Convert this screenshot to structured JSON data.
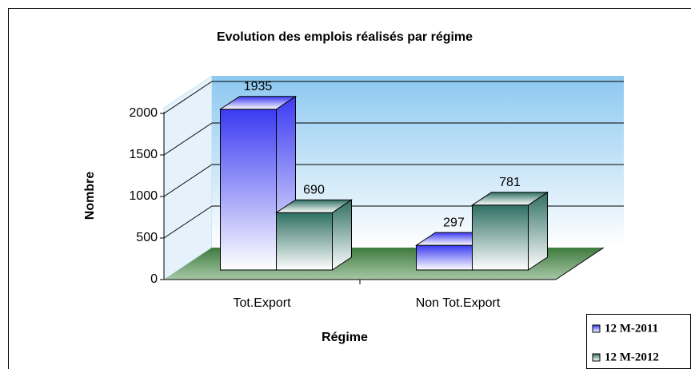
{
  "chart_data": {
    "type": "bar3d",
    "title": "Evolution des emplois réalisés par régime",
    "x_label": "Régime",
    "y_label": "Nombre",
    "categories": [
      "Tot.Export",
      "Non Tot.Export"
    ],
    "series": [
      {
        "name": "12 M-2011",
        "color": "#3a3af2",
        "values": [
          1935,
          297
        ]
      },
      {
        "name": "12 M-2012",
        "color": "#2f6f63",
        "values": [
          690,
          781
        ]
      }
    ],
    "ylim": [
      0,
      2000
    ],
    "yticks": [
      0,
      500,
      1000,
      1500,
      2000
    ],
    "grid": true,
    "legend": "bottom-right"
  }
}
